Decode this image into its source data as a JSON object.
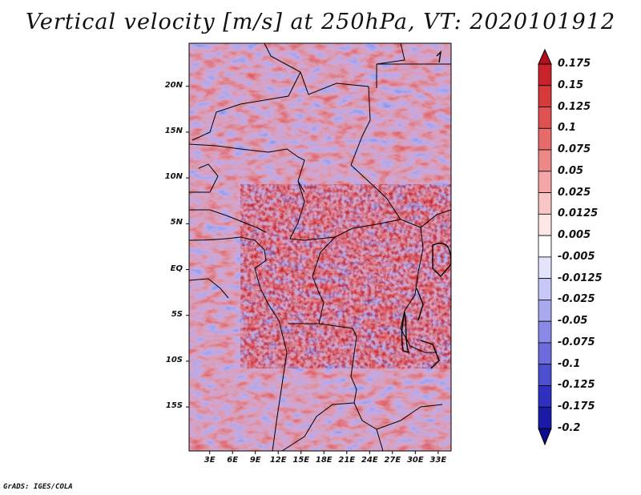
{
  "title": "Vertical velocity [m/s] at 250hPa, VT: 2020101912",
  "map": {
    "lat_ticks": [
      "20N",
      "15N",
      "10N",
      "5N",
      "EQ",
      "5S",
      "10S",
      "15S"
    ],
    "lat_values": [
      20,
      15,
      10,
      5,
      0,
      -5,
      -10,
      -15
    ],
    "lon_ticks": [
      "3E",
      "6E",
      "9E",
      "12E",
      "15E",
      "18E",
      "21E",
      "24E",
      "27E",
      "30E",
      "33E"
    ],
    "lon_values": [
      3,
      6,
      9,
      12,
      15,
      18,
      21,
      24,
      27,
      30,
      33
    ],
    "lon_range": [
      0.3,
      34.7
    ],
    "lat_range": [
      -19.8,
      24.7
    ]
  },
  "colorbar": {
    "labels": [
      "0.175",
      "0.15",
      "0.125",
      "0.1",
      "0.075",
      "0.05",
      "0.025",
      "0.0125",
      "0.005",
      "-0.005",
      "-0.0125",
      "-0.025",
      "-0.05",
      "-0.075",
      "-0.1",
      "-0.125",
      "-0.175",
      "-0.2"
    ],
    "colors": [
      "#b4101c",
      "#c8222b",
      "#d63a3a",
      "#e05252",
      "#e86b6b",
      "#ee8888",
      "#f4a6a6",
      "#f9c6c6",
      "#fde6e6",
      "#ffffff",
      "#e4e4fc",
      "#c8c8f6",
      "#a8a8ee",
      "#8a8ae6",
      "#6c6cdc",
      "#4e4ed0",
      "#3030c0",
      "#1a1aa8",
      "#0c0c8c"
    ]
  },
  "footer": "GrADS: IGES/COLA"
}
